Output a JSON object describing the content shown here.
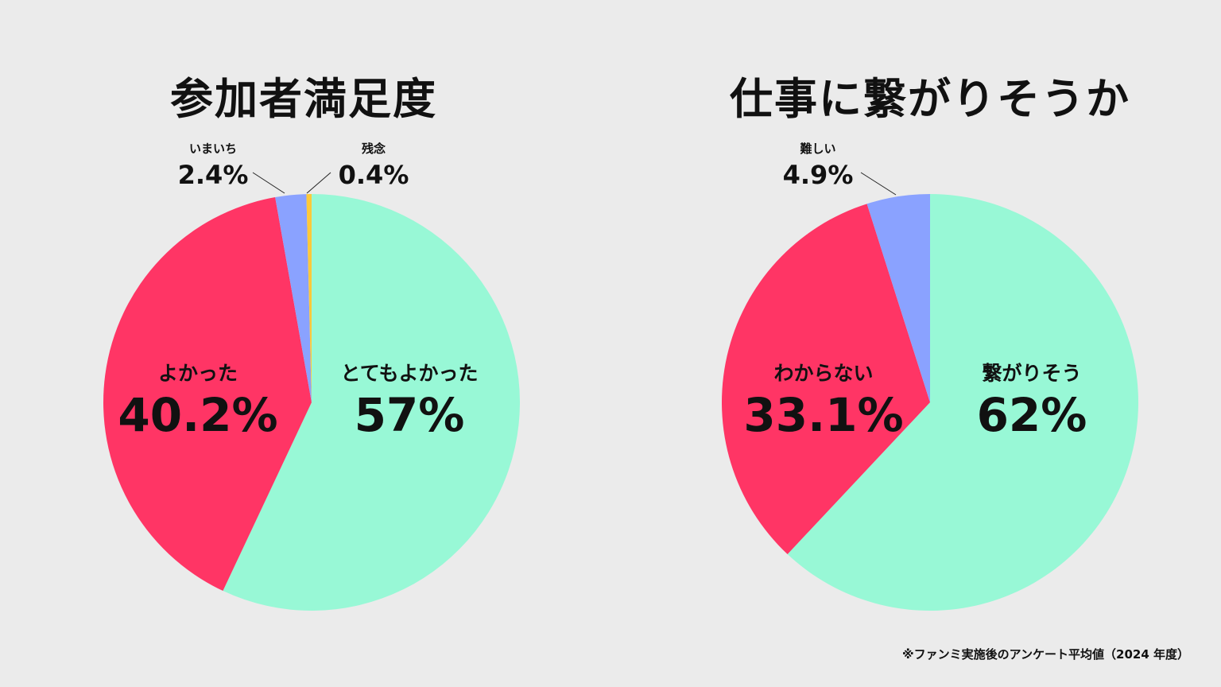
{
  "chart_data": [
    {
      "type": "pie",
      "title": "参加者満足度",
      "slices": [
        {
          "label": "とてもよかった",
          "value": 57,
          "value_text": "57%",
          "color": "#98f8d6"
        },
        {
          "label": "よかった",
          "value": 40.2,
          "value_text": "40.2%",
          "color": "#ff3565"
        },
        {
          "label": "いまいち",
          "value": 2.4,
          "value_text": "2.4%",
          "color": "#8aa2ff"
        },
        {
          "label": "残念",
          "value": 0.4,
          "value_text": "0.4%",
          "color": "#ffc93a"
        }
      ]
    },
    {
      "type": "pie",
      "title": "仕事に繋がりそうか",
      "slices": [
        {
          "label": "繋がりそう",
          "value": 62,
          "value_text": "62%",
          "color": "#98f8d6"
        },
        {
          "label": "わからない",
          "value": 33.1,
          "value_text": "33.1%",
          "color": "#ff3565"
        },
        {
          "label": "難しい",
          "value": 4.9,
          "value_text": "4.9%",
          "color": "#8aa2ff"
        }
      ]
    }
  ],
  "footnote": "※ファンミ実施後のアンケート平均値（2024 年度）"
}
